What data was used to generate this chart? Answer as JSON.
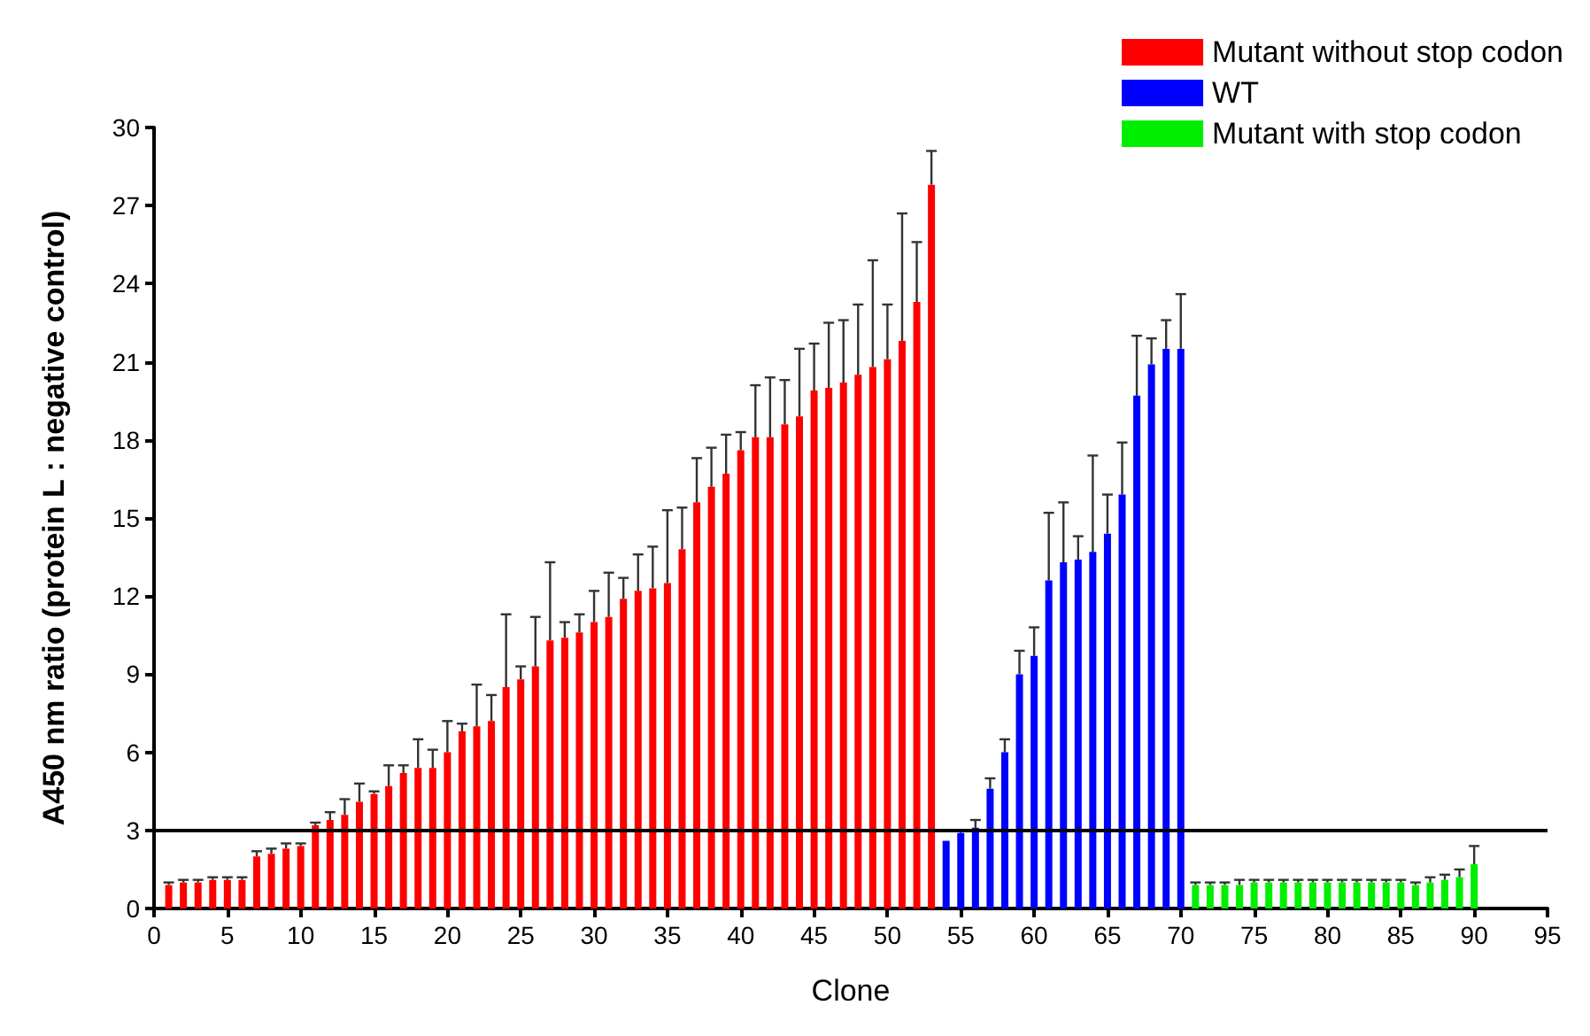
{
  "chart_data": {
    "type": "bar",
    "xlabel": "Clone",
    "ylabel": "A450 nm ratio (protein L : negative control)",
    "xlim": [
      0,
      95
    ],
    "xticks": [
      0,
      5,
      10,
      15,
      20,
      25,
      30,
      35,
      40,
      45,
      50,
      55,
      60,
      65,
      70,
      75,
      80,
      85,
      90,
      95
    ],
    "ylim": [
      0,
      30
    ],
    "yticks": [
      0,
      3,
      6,
      9,
      12,
      15,
      18,
      21,
      24,
      27,
      30
    ],
    "grid": false,
    "legend": "top right",
    "ref_lines": [
      {
        "axis": "y",
        "value": 3,
        "label": null
      }
    ],
    "series": [
      {
        "name": "Mutant without stop codon",
        "color": "#ff0000",
        "x": [
          1,
          2,
          3,
          4,
          5,
          6,
          7,
          8,
          9,
          10,
          11,
          12,
          13,
          14,
          15,
          16,
          17,
          18,
          19,
          20,
          21,
          22,
          23,
          24,
          25,
          26,
          27,
          28,
          29,
          30,
          31,
          32,
          33,
          34,
          35,
          36,
          37,
          38,
          39,
          40,
          41,
          42,
          43,
          44,
          45,
          46,
          47,
          48,
          49,
          50,
          51,
          52,
          53
        ],
        "values": [
          0.9,
          1.0,
          1.0,
          1.1,
          1.1,
          1.1,
          2.0,
          2.1,
          2.3,
          2.4,
          3.2,
          3.4,
          3.6,
          4.1,
          4.4,
          4.7,
          5.2,
          5.4,
          5.4,
          6.0,
          6.8,
          7.0,
          7.2,
          8.5,
          8.8,
          9.3,
          10.3,
          10.4,
          10.6,
          11.0,
          11.2,
          11.9,
          12.2,
          12.3,
          12.5,
          13.8,
          15.6,
          16.2,
          16.7,
          17.6,
          18.1,
          18.1,
          18.6,
          18.9,
          19.9,
          20.0,
          20.2,
          20.5,
          20.8,
          21.1,
          21.8,
          23.3,
          27.8
        ],
        "errors": [
          [
            0.9,
            1.0
          ],
          [
            1.0,
            1.1
          ],
          [
            1.0,
            1.1
          ],
          [
            1.1,
            1.2
          ],
          [
            1.1,
            1.2
          ],
          [
            1.1,
            1.2
          ],
          [
            2.0,
            2.2
          ],
          [
            2.1,
            2.3
          ],
          [
            2.3,
            2.5
          ],
          [
            2.4,
            2.5
          ],
          [
            3.2,
            3.3
          ],
          [
            3.4,
            3.7
          ],
          [
            3.6,
            4.2
          ],
          [
            4.1,
            4.8
          ],
          [
            4.4,
            4.5
          ],
          [
            4.7,
            5.5
          ],
          [
            5.2,
            5.5
          ],
          [
            5.4,
            6.5
          ],
          [
            5.4,
            6.1
          ],
          [
            6.0,
            7.2
          ],
          [
            6.8,
            7.1
          ],
          [
            7.0,
            8.6
          ],
          [
            7.2,
            8.2
          ],
          [
            8.5,
            11.3
          ],
          [
            8.8,
            9.3
          ],
          [
            9.3,
            11.2
          ],
          [
            10.3,
            13.3
          ],
          [
            10.4,
            11.0
          ],
          [
            10.6,
            11.3
          ],
          [
            11.0,
            12.2
          ],
          [
            11.2,
            12.9
          ],
          [
            11.9,
            12.7
          ],
          [
            12.2,
            13.6
          ],
          [
            12.3,
            13.9
          ],
          [
            12.5,
            15.3
          ],
          [
            13.8,
            15.4
          ],
          [
            15.6,
            17.3
          ],
          [
            16.2,
            17.7
          ],
          [
            16.7,
            18.2
          ],
          [
            17.6,
            18.3
          ],
          [
            18.1,
            20.1
          ],
          [
            18.1,
            20.4
          ],
          [
            18.6,
            20.3
          ],
          [
            18.9,
            21.5
          ],
          [
            19.9,
            21.7
          ],
          [
            20.0,
            22.5
          ],
          [
            20.2,
            22.6
          ],
          [
            20.5,
            23.2
          ],
          [
            20.8,
            24.9
          ],
          [
            21.1,
            23.2
          ],
          [
            21.8,
            26.7
          ],
          [
            23.3,
            25.6
          ],
          [
            27.8,
            29.1
          ]
        ]
      },
      {
        "name": "WT",
        "color": "#0000ff",
        "x": [
          54,
          55,
          56,
          57,
          58,
          59,
          60,
          61,
          62,
          63,
          64,
          65,
          66,
          67,
          68,
          69,
          70
        ],
        "values": [
          2.6,
          2.9,
          3.1,
          4.6,
          6.0,
          9.0,
          9.7,
          12.6,
          13.3,
          13.4,
          13.7,
          14.4,
          15.9,
          19.7,
          20.9,
          21.5,
          21.5
        ],
        "errors": [
          null,
          [
            2.9,
            3.0
          ],
          [
            3.1,
            3.4
          ],
          [
            4.6,
            5.0
          ],
          [
            6.0,
            6.5
          ],
          [
            9.0,
            9.9
          ],
          [
            9.7,
            10.8
          ],
          [
            12.6,
            15.2
          ],
          [
            13.3,
            15.6
          ],
          [
            13.4,
            14.3
          ],
          [
            13.7,
            17.4
          ],
          [
            14.4,
            15.9
          ],
          [
            15.9,
            17.9
          ],
          [
            19.7,
            22.0
          ],
          [
            20.9,
            21.9
          ],
          [
            21.5,
            22.6
          ],
          [
            21.5,
            23.6
          ]
        ]
      },
      {
        "name": "Mutant with stop codon",
        "color": "#00ee00",
        "x": [
          71,
          72,
          73,
          74,
          75,
          76,
          77,
          78,
          79,
          80,
          81,
          82,
          83,
          84,
          85,
          86,
          87,
          88,
          89,
          90
        ],
        "values": [
          0.9,
          0.9,
          0.9,
          0.9,
          1.0,
          1.0,
          1.0,
          1.0,
          1.0,
          1.0,
          1.0,
          1.0,
          1.0,
          1.0,
          1.0,
          0.9,
          1.0,
          1.1,
          1.2,
          1.7
        ],
        "errors": [
          [
            0.9,
            1.0
          ],
          [
            0.9,
            1.0
          ],
          [
            0.9,
            1.0
          ],
          [
            0.9,
            1.1
          ],
          [
            1.0,
            1.1
          ],
          [
            1.0,
            1.1
          ],
          [
            1.0,
            1.1
          ],
          [
            1.0,
            1.1
          ],
          [
            1.0,
            1.1
          ],
          [
            1.0,
            1.1
          ],
          [
            1.0,
            1.1
          ],
          [
            1.0,
            1.1
          ],
          [
            1.0,
            1.1
          ],
          [
            1.0,
            1.1
          ],
          [
            1.0,
            1.1
          ],
          [
            0.9,
            1.0
          ],
          [
            1.0,
            1.2
          ],
          [
            1.1,
            1.3
          ],
          [
            1.2,
            1.5
          ],
          [
            1.7,
            2.4
          ]
        ]
      }
    ]
  }
}
